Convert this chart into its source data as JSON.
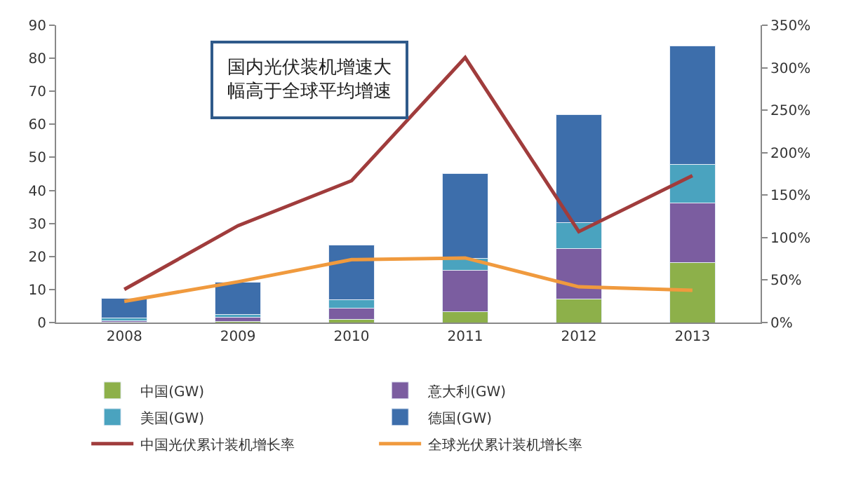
{
  "chart_data": {
    "type": "bar",
    "stacked": true,
    "categories": [
      "2008",
      "2009",
      "2010",
      "2011",
      "2012",
      "2013"
    ],
    "series": [
      {
        "name": "中国(GW)",
        "color": "#8db04a",
        "values": [
          0.1,
          0.3,
          0.9,
          3.3,
          7.1,
          18.1
        ]
      },
      {
        "name": "意大利(GW)",
        "color": "#7b5da0",
        "values": [
          0.5,
          1.2,
          3.5,
          12.5,
          15.4,
          18.0
        ]
      },
      {
        "name": "美国(GW)",
        "color": "#4aa3bf",
        "values": [
          0.7,
          0.9,
          2.4,
          3.7,
          7.8,
          11.7
        ]
      },
      {
        "name": "德国(GW)",
        "color": "#3d6eab",
        "values": [
          6.0,
          9.9,
          16.7,
          25.6,
          32.6,
          35.9
        ]
      },
      {
        "name": "中国光伏累计装机增长率",
        "color": "#a03c3c",
        "type": "line",
        "axis": "y2",
        "values": [
          39,
          114,
          167,
          312,
          107,
          173
        ]
      },
      {
        "name": "全球光伏累计装机增长率",
        "color": "#f09a3e",
        "type": "line",
        "axis": "y2",
        "values": [
          25,
          48,
          74,
          76,
          42,
          38
        ]
      }
    ],
    "ylim": [
      0,
      90
    ],
    "yticks": [
      0,
      10,
      20,
      30,
      40,
      50,
      60,
      70,
      80,
      90
    ],
    "y2lim": [
      0,
      350
    ],
    "y2ticks": [
      {
        "value": 0,
        "label": "0%"
      },
      {
        "value": 50,
        "label": "50%"
      },
      {
        "value": 100,
        "label": "100%"
      },
      {
        "value": 150,
        "label": "150%"
      },
      {
        "value": 200,
        "label": "200%"
      },
      {
        "value": 250,
        "label": "250%"
      },
      {
        "value": 300,
        "label": "300%"
      },
      {
        "value": 350,
        "label": "350%"
      }
    ],
    "annotations": [
      "国内光伏装机增速大幅高于全球平均增速"
    ],
    "legend": "bottom"
  }
}
